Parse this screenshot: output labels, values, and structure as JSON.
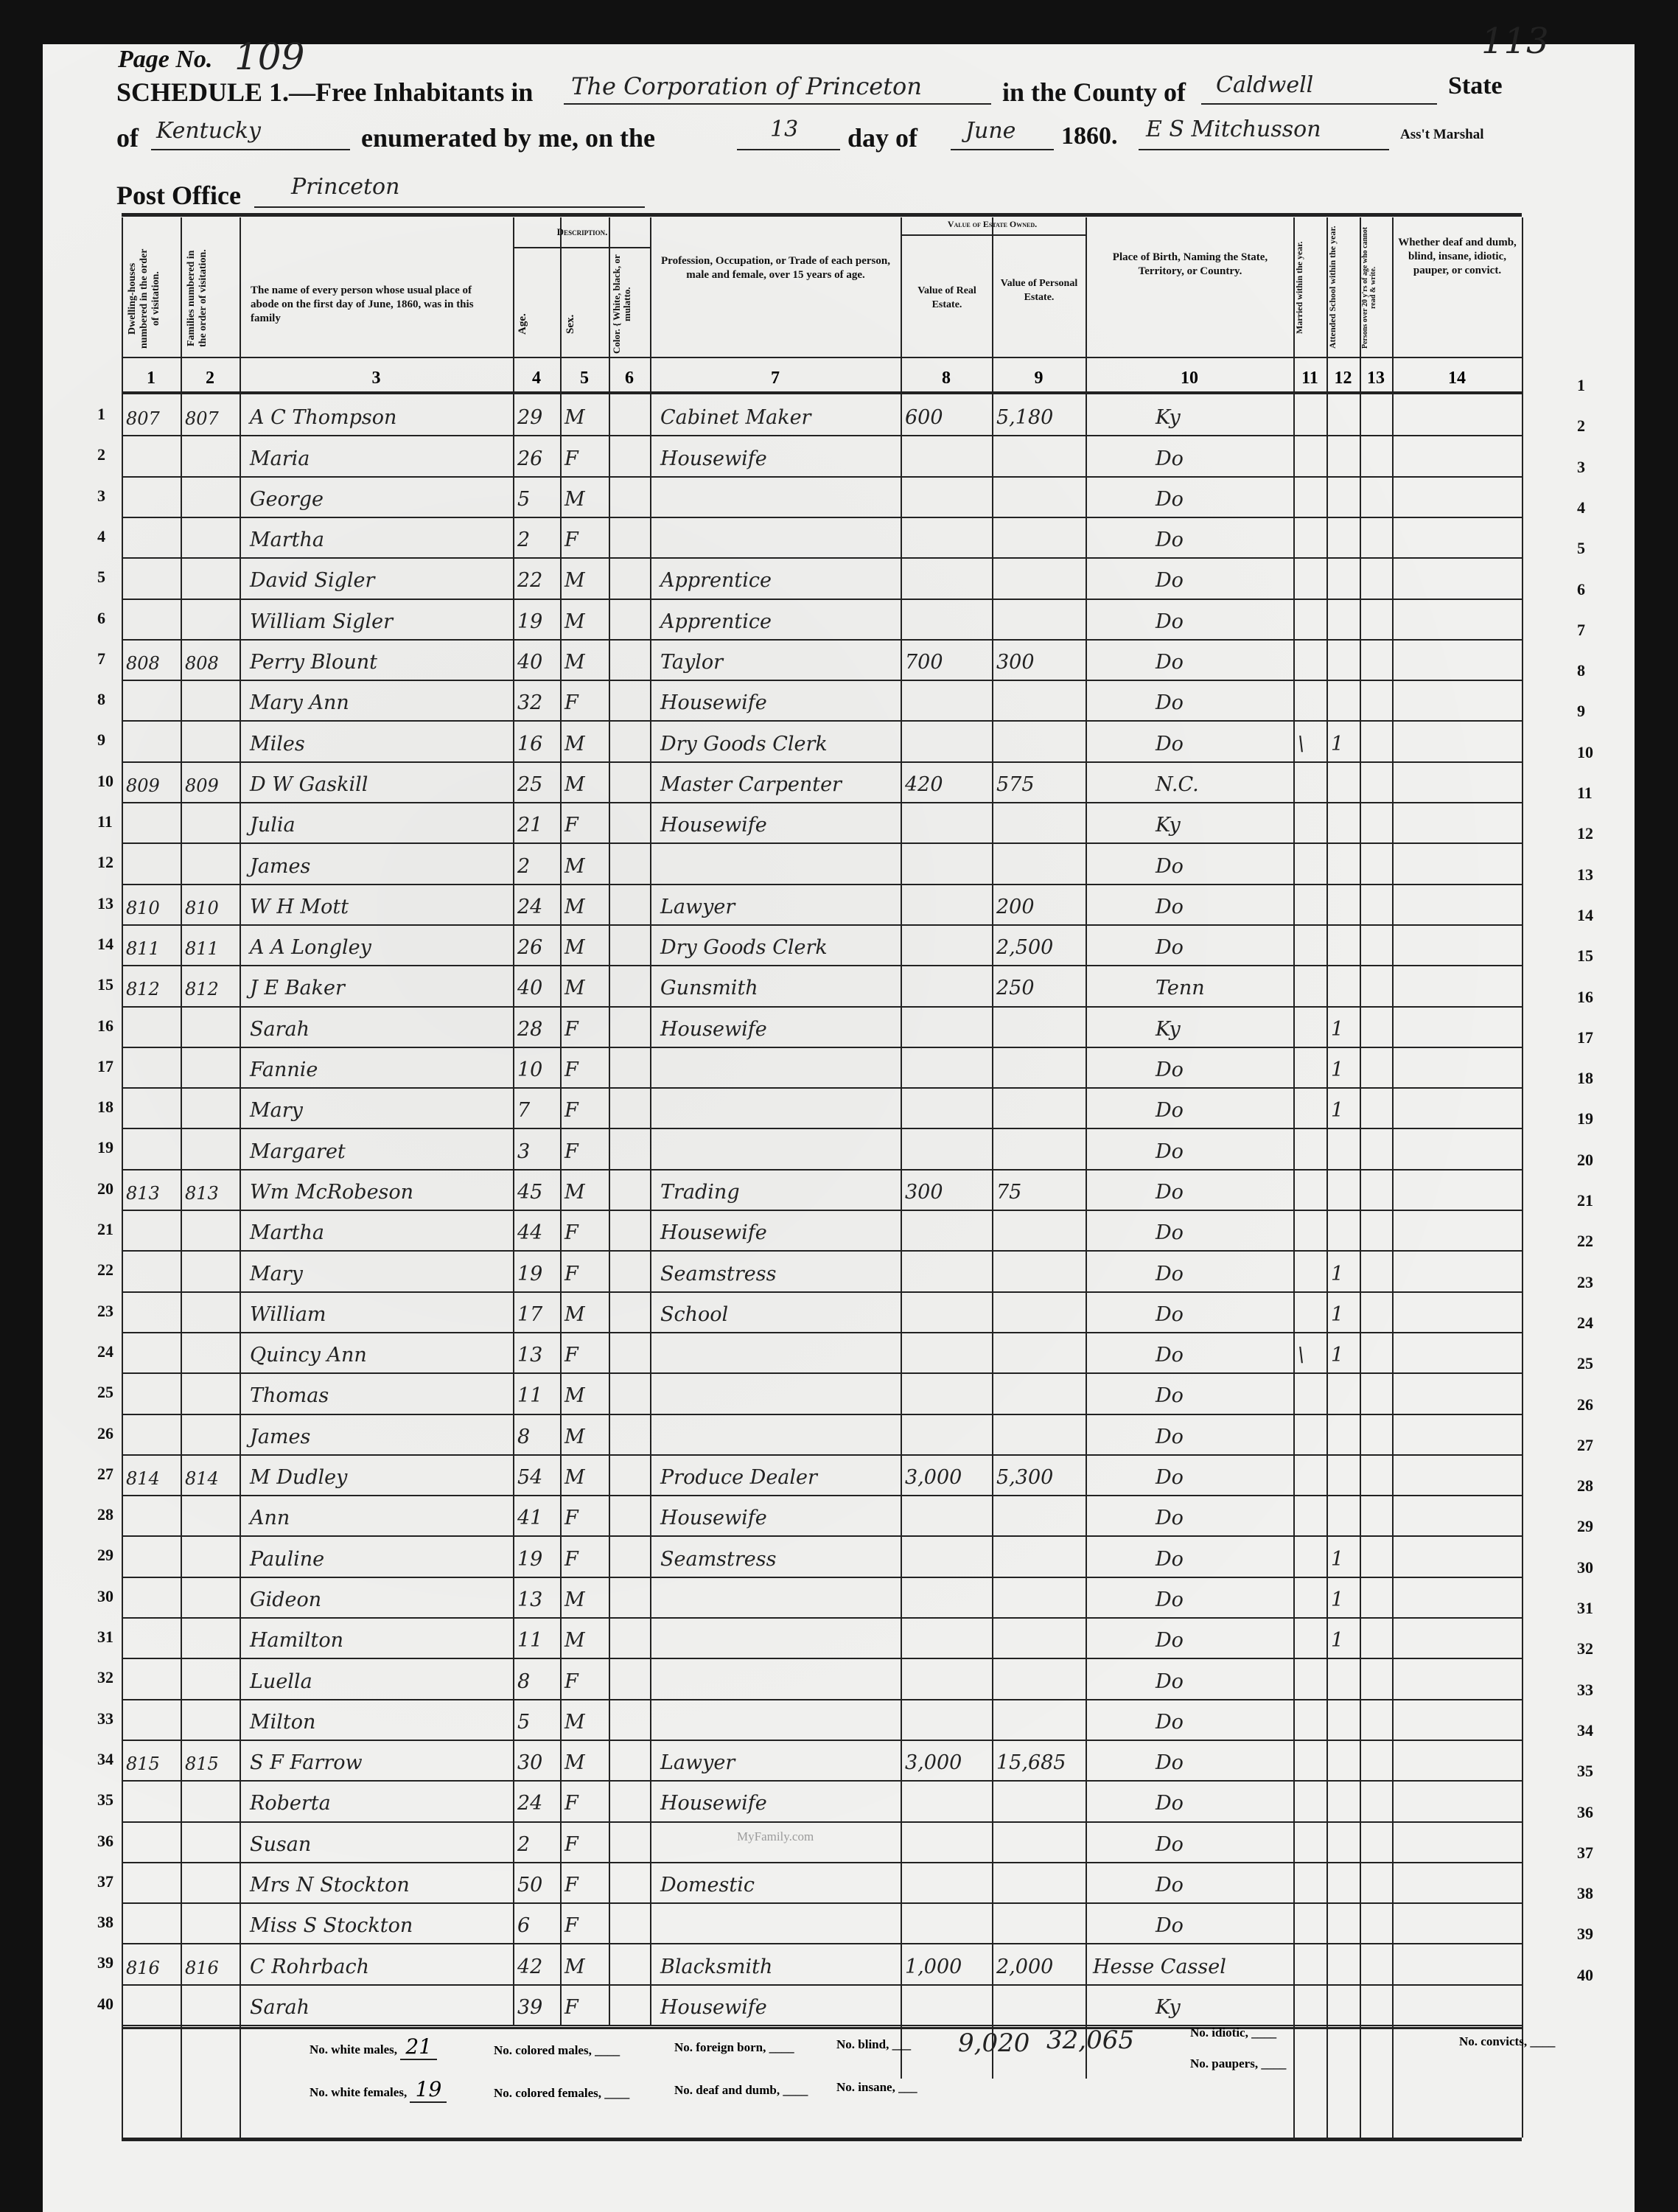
{
  "header": {
    "page_no_label": "Page No.",
    "page_no": "109",
    "stamp_number": "113",
    "schedule_label": "SCHEDULE 1.—Free Inhabitants in",
    "place": "The Corporation of Princeton",
    "county_label": "in the County of",
    "county": "Caldwell",
    "state_label": "State",
    "of_label": "of",
    "state": "Kentucky",
    "enumerated_label": "enumerated by me, on the",
    "day": "13",
    "day_of_label": "day of",
    "month": "June",
    "year": "1860.",
    "marshal": "E S Mitchusson",
    "marshal_label": "Ass't Marshal",
    "post_office_label": "Post Office",
    "post_office": "Princeton"
  },
  "columns": {
    "c1": "Dwelling-houses numbered in the order of visitation.",
    "c2": "Families numbered in the order of visitation.",
    "c3": "The name of every person whose usual place of abode on the first day of June, 1860, was in this family",
    "description": "Description.",
    "c4": "Age.",
    "c5": "Sex.",
    "c6": "Color. { White, black, or mulatto.",
    "c7": "Profession, Occupation, or Trade of each person, male and female, over 15 years of age.",
    "estate": "Value of Estate Owned.",
    "c8": "Value of Real Estate.",
    "c9": "Value of Personal Estate.",
    "c10": "Place of Birth, Naming the State, Territory, or Country.",
    "c11": "Married within the year.",
    "c12": "Attended School within the year.",
    "c13": "Persons over 20 y'rs of age who cannot read & write.",
    "c14": "Whether deaf and dumb, blind, insane, idiotic, pauper, or convict.",
    "numbers": [
      "1",
      "2",
      "3",
      "4",
      "5",
      "6",
      "7",
      "8",
      "9",
      "10",
      "11",
      "12",
      "13",
      "14"
    ]
  },
  "rows": [
    {
      "n": "1",
      "dw": "807",
      "fam": "807",
      "name": "A C Thompson",
      "age": "29",
      "sex": "M",
      "occ": "Cabinet Maker",
      "real": "600",
      "pers": "5,180",
      "birth": "Ky"
    },
    {
      "n": "2",
      "name": "Maria",
      "age": "26",
      "sex": "F",
      "occ": "Housewife",
      "birth": "Do"
    },
    {
      "n": "3",
      "name": "George",
      "age": "5",
      "sex": "M",
      "birth": "Do"
    },
    {
      "n": "4",
      "name": "Martha",
      "age": "2",
      "sex": "F",
      "birth": "Do"
    },
    {
      "n": "5",
      "name": "David Sigler",
      "age": "22",
      "sex": "M",
      "occ": "Apprentice",
      "birth": "Do"
    },
    {
      "n": "6",
      "name": "William Sigler",
      "age": "19",
      "sex": "M",
      "occ": "Apprentice",
      "birth": "Do"
    },
    {
      "n": "7",
      "dw": "808",
      "fam": "808",
      "name": "Perry Blount",
      "age": "40",
      "sex": "M",
      "occ": "Taylor",
      "real": "700",
      "pers": "300",
      "birth": "Do"
    },
    {
      "n": "8",
      "name": "Mary Ann",
      "age": "32",
      "sex": "F",
      "occ": "Housewife",
      "birth": "Do"
    },
    {
      "n": "9",
      "name": "Miles",
      "age": "16",
      "sex": "M",
      "occ": "Dry Goods Clerk",
      "birth": "Do",
      "married": "\\",
      "school": "1"
    },
    {
      "n": "10",
      "dw": "809",
      "fam": "809",
      "name": "D W Gaskill",
      "age": "25",
      "sex": "M",
      "occ": "Master Carpenter",
      "real": "420",
      "pers": "575",
      "birth": "N.C."
    },
    {
      "n": "11",
      "name": "Julia",
      "age": "21",
      "sex": "F",
      "occ": "Housewife",
      "birth": "Ky"
    },
    {
      "n": "12",
      "name": "James",
      "age": "2",
      "sex": "M",
      "birth": "Do"
    },
    {
      "n": "13",
      "dw": "810",
      "fam": "810",
      "name": "W H Mott",
      "age": "24",
      "sex": "M",
      "occ": "Lawyer",
      "pers": "200",
      "birth": "Do"
    },
    {
      "n": "14",
      "dw": "811",
      "fam": "811",
      "name": "A A Longley",
      "age": "26",
      "sex": "M",
      "occ": "Dry Goods Clerk",
      "pers": "2,500",
      "birth": "Do"
    },
    {
      "n": "15",
      "dw": "812",
      "fam": "812",
      "name": "J E Baker",
      "age": "40",
      "sex": "M",
      "occ": "Gunsmith",
      "pers": "250",
      "birth": "Tenn"
    },
    {
      "n": "16",
      "name": "Sarah",
      "age": "28",
      "sex": "F",
      "occ": "Housewife",
      "birth": "Ky",
      "school": "1"
    },
    {
      "n": "17",
      "name": "Fannie",
      "age": "10",
      "sex": "F",
      "birth": "Do",
      "school": "1"
    },
    {
      "n": "18",
      "name": "Mary",
      "age": "7",
      "sex": "F",
      "birth": "Do",
      "school": "1"
    },
    {
      "n": "19",
      "name": "Margaret",
      "age": "3",
      "sex": "F",
      "birth": "Do"
    },
    {
      "n": "20",
      "dw": "813",
      "fam": "813",
      "name": "Wm McRobeson",
      "age": "45",
      "sex": "M",
      "occ": "Trading",
      "real": "300",
      "pers": "75",
      "birth": "Do"
    },
    {
      "n": "21",
      "name": "Martha",
      "age": "44",
      "sex": "F",
      "occ": "Housewife",
      "birth": "Do"
    },
    {
      "n": "22",
      "name": "Mary",
      "age": "19",
      "sex": "F",
      "occ": "Seamstress",
      "birth": "Do",
      "school": "1"
    },
    {
      "n": "23",
      "name": "William",
      "age": "17",
      "sex": "M",
      "occ": "School",
      "birth": "Do",
      "school": "1"
    },
    {
      "n": "24",
      "name": "Quincy Ann",
      "age": "13",
      "sex": "F",
      "birth": "Do",
      "married": "\\",
      "school": "1"
    },
    {
      "n": "25",
      "name": "Thomas",
      "age": "11",
      "sex": "M",
      "birth": "Do"
    },
    {
      "n": "26",
      "name": "James",
      "age": "8",
      "sex": "M",
      "birth": "Do"
    },
    {
      "n": "27",
      "dw": "814",
      "fam": "814",
      "name": "M Dudley",
      "age": "54",
      "sex": "M",
      "occ": "Produce Dealer",
      "real": "3,000",
      "pers": "5,300",
      "birth": "Do"
    },
    {
      "n": "28",
      "name": "Ann",
      "age": "41",
      "sex": "F",
      "occ": "Housewife",
      "birth": "Do"
    },
    {
      "n": "29",
      "name": "Pauline",
      "age": "19",
      "sex": "F",
      "occ": "Seamstress",
      "birth": "Do",
      "school": "1"
    },
    {
      "n": "30",
      "name": "Gideon",
      "age": "13",
      "sex": "M",
      "birth": "Do",
      "school": "1"
    },
    {
      "n": "31",
      "name": "Hamilton",
      "age": "11",
      "sex": "M",
      "birth": "Do",
      "school": "1"
    },
    {
      "n": "32",
      "name": "Luella",
      "age": "8",
      "sex": "F",
      "birth": "Do"
    },
    {
      "n": "33",
      "name": "Milton",
      "age": "5",
      "sex": "M",
      "birth": "Do"
    },
    {
      "n": "34",
      "dw": "815",
      "fam": "815",
      "name": "S F Farrow",
      "age": "30",
      "sex": "M",
      "occ": "Lawyer",
      "real": "3,000",
      "pers": "15,685",
      "birth": "Do"
    },
    {
      "n": "35",
      "name": "Roberta",
      "age": "24",
      "sex": "F",
      "occ": "Housewife",
      "birth": "Do"
    },
    {
      "n": "36",
      "name": "Susan",
      "age": "2",
      "sex": "F",
      "birth": "Do"
    },
    {
      "n": "37",
      "name": "Mrs N Stockton",
      "age": "50",
      "sex": "F",
      "occ": "Domestic",
      "birth": "Do"
    },
    {
      "n": "38",
      "name": "Miss S Stockton",
      "age": "6",
      "sex": "F",
      "birth": "Do"
    },
    {
      "n": "39",
      "dw": "816",
      "fam": "816",
      "name": "C Rohrbach",
      "age": "42",
      "sex": "M",
      "occ": "Blacksmith",
      "real": "1,000",
      "pers": "2,000",
      "birth": "Hesse Cassel"
    },
    {
      "n": "40",
      "name": "Sarah",
      "age": "39",
      "sex": "F",
      "occ": "Housewife",
      "birth": "Ky"
    }
  ],
  "right_line_numbers": [
    "1",
    "2",
    "3",
    "4",
    "5",
    "6",
    "7",
    "8",
    "9",
    "10",
    "11",
    "12",
    "13",
    "14",
    "15",
    "16",
    "17",
    "18",
    "19",
    "20",
    "21",
    "22",
    "23",
    "24",
    "25",
    "26",
    "27",
    "28",
    "29",
    "30",
    "31",
    "32",
    "33",
    "34",
    "35",
    "36",
    "37",
    "38",
    "39",
    "40"
  ],
  "footer": {
    "white_males_label": "No. white males,",
    "white_males": "21",
    "white_females_label": "No. white females,",
    "white_females": "19",
    "colored_males_label": "No. colored males,",
    "colored_females_label": "No. colored females,",
    "foreign_born_label": "No. foreign born,",
    "deaf_dumb_label": "No. deaf and dumb,",
    "blind_label": "No. blind,",
    "insane_label": "No. insane,",
    "total_real": "9,020",
    "total_personal": "32,065",
    "idiotic_label": "No. idiotic,",
    "paupers_label": "No. paupers,",
    "convicts_label": "No. convicts,"
  },
  "watermark": "MyFamily.com"
}
